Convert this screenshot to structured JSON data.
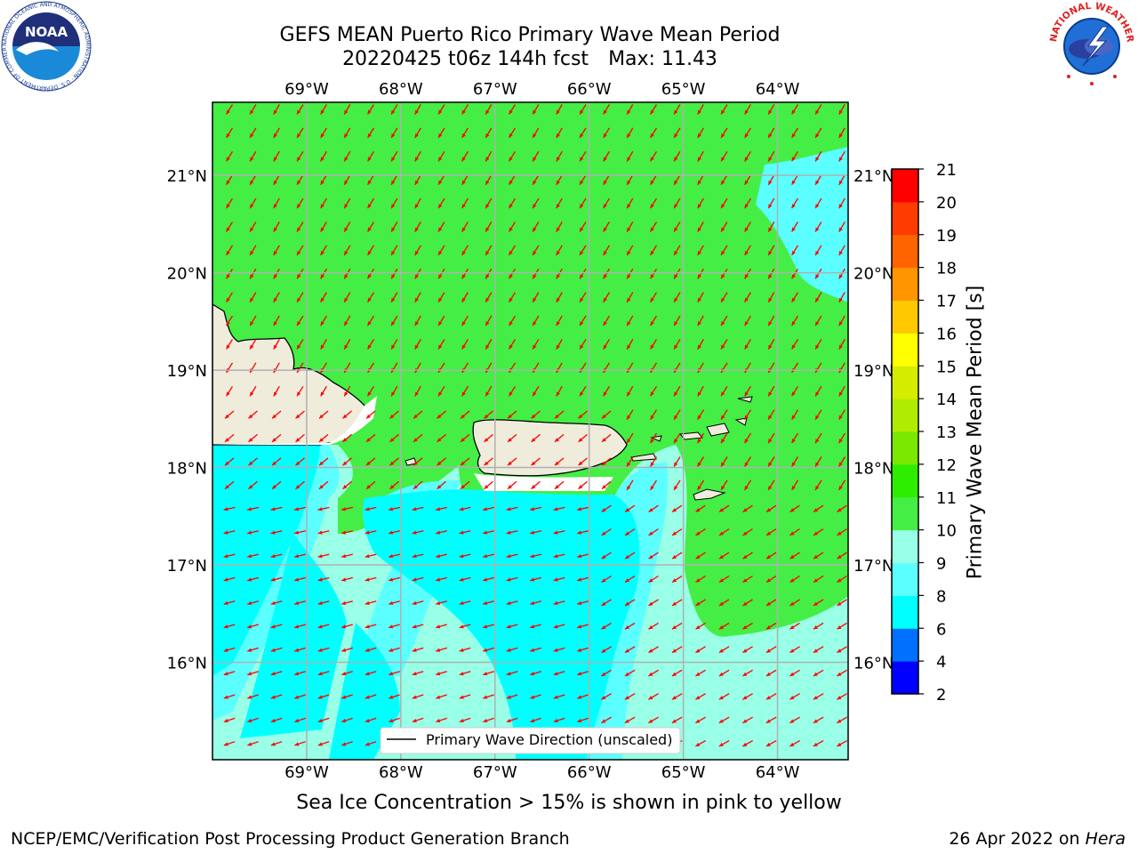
{
  "title": {
    "line1": "GEFS MEAN Puerto Rico Primary Wave Mean Period",
    "line2_run": "20220425 t06z 144h fcst",
    "line2_max": "Max: 11.43"
  },
  "map": {
    "lon_labels": [
      "69°W",
      "68°W",
      "67°W",
      "66°W",
      "65°W",
      "64°W"
    ],
    "lat_labels": [
      "21°N",
      "20°N",
      "19°N",
      "18°N",
      "17°N",
      "16°N"
    ],
    "lon_range": [
      -70.0,
      -63.25
    ],
    "lat_range": [
      15.0,
      21.75
    ],
    "legend_label": "Primary Wave Direction (unscaled)",
    "land_color": "#efecdc",
    "arrow_color": "#ff0000"
  },
  "colorbar": {
    "label": "Primary Wave Mean Period [s]",
    "ticks": [
      "2",
      "4",
      "6",
      "8",
      "9",
      "10",
      "11",
      "12",
      "13",
      "14",
      "15",
      "16",
      "17",
      "18",
      "19",
      "20",
      "21"
    ],
    "colors": [
      "#0000ff",
      "#0070ff",
      "#00ffff",
      "#5cffff",
      "#99ffe6",
      "#44ee44",
      "#2eee00",
      "#7ae800",
      "#b0ec00",
      "#d4ec00",
      "#ffff00",
      "#ffc800",
      "#ff9600",
      "#ff6400",
      "#ff3c00",
      "#ff0000"
    ]
  },
  "ice_note": "Sea Ice Concentration > 15% is shown in pink to yellow",
  "footer": {
    "left": "NCEP/EMC/Verification Post Processing Product Generation Branch",
    "date": "26 Apr 2022 on",
    "host": "Hera"
  },
  "logos": {
    "noaa": "NOAA",
    "noaa_ring": "NATIONAL OCEANIC AND ATMOSPHERIC ADMINISTRATION · U.S. DEPARTMENT OF COMMERCE ·",
    "nws_ring": "NATIONAL WEATHER SERVICE"
  }
}
